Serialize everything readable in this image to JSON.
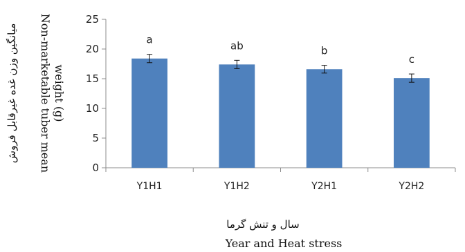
{
  "chart_data": {
    "type": "bar",
    "categories": [
      "Y1H1",
      "Y1H2",
      "Y2H1",
      "Y2H2"
    ],
    "values": [
      18.4,
      17.4,
      16.6,
      15.1
    ],
    "errors": [
      0.7,
      0.7,
      0.65,
      0.7
    ],
    "significance_letters": [
      "a",
      "ab",
      "b",
      "c"
    ],
    "ylim": [
      0,
      25
    ],
    "yticks": [
      0,
      5,
      10,
      15,
      20,
      25
    ],
    "xlabel_fa": "سال و تنش گرما",
    "xlabel": "Year and Heat stress",
    "ylabel_fa": "میانگین وزن غده غیرقابل فروش",
    "ylabel_line1": "Non-marketable tuber mean",
    "ylabel_line2": "weight (g)",
    "bar_color": "#4f81bd",
    "grid": false
  }
}
